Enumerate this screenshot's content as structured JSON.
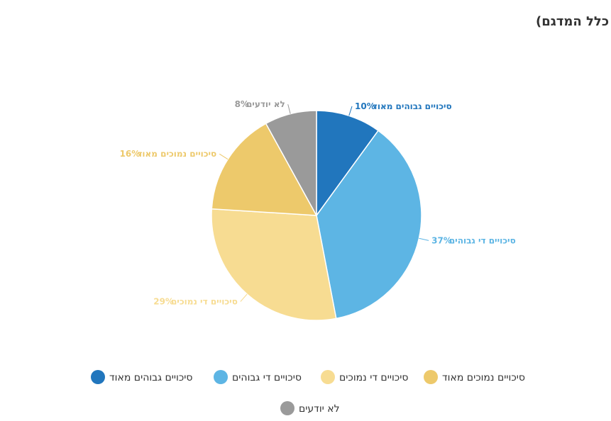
{
  "chart_data": {
    "type": "pie",
    "title": "מה הסיכויים שהממשלה החדשה תחזיק מעמד לפחות שנה? (%, כלל המדגם)",
    "categories": [
      "סיכויים גבוהים מאוד",
      "סיכויים די גבוהים",
      "סיכויים די נמוכים",
      "סיכויים נמוכים מאוד",
      "לא יודעים"
    ],
    "values": [
      10,
      37,
      29,
      16,
      8
    ],
    "value_labels": [
      "10%",
      "37%",
      "29%",
      "16%",
      "8%"
    ],
    "colors": [
      "#2176bd",
      "#5db5e4",
      "#f7dc92",
      "#edc96b",
      "#9a9a9a"
    ],
    "legend": "bottom"
  }
}
